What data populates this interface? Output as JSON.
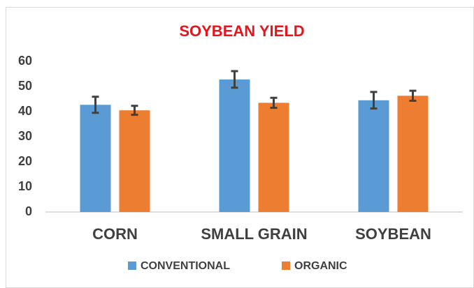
{
  "chart_data": {
    "type": "bar",
    "title": "SOYBEAN YIELD",
    "categories": [
      "CORN",
      "SMALL GRAIN",
      "SOYBEAN"
    ],
    "series": [
      {
        "name": "CONVENTIONAL",
        "color": "#5b9bd5",
        "values": [
          42.7,
          52.8,
          44.5
        ],
        "errors": [
          3.2,
          3.3,
          3.3
        ]
      },
      {
        "name": "ORGANIC",
        "color": "#ed7d31",
        "values": [
          40.5,
          43.5,
          46.3
        ],
        "errors": [
          1.8,
          2.0,
          2.0
        ]
      }
    ],
    "ylim": [
      0,
      60
    ],
    "yticks": [
      0,
      10,
      20,
      30,
      40,
      50,
      60
    ],
    "grid": false,
    "legend": "bottom"
  }
}
